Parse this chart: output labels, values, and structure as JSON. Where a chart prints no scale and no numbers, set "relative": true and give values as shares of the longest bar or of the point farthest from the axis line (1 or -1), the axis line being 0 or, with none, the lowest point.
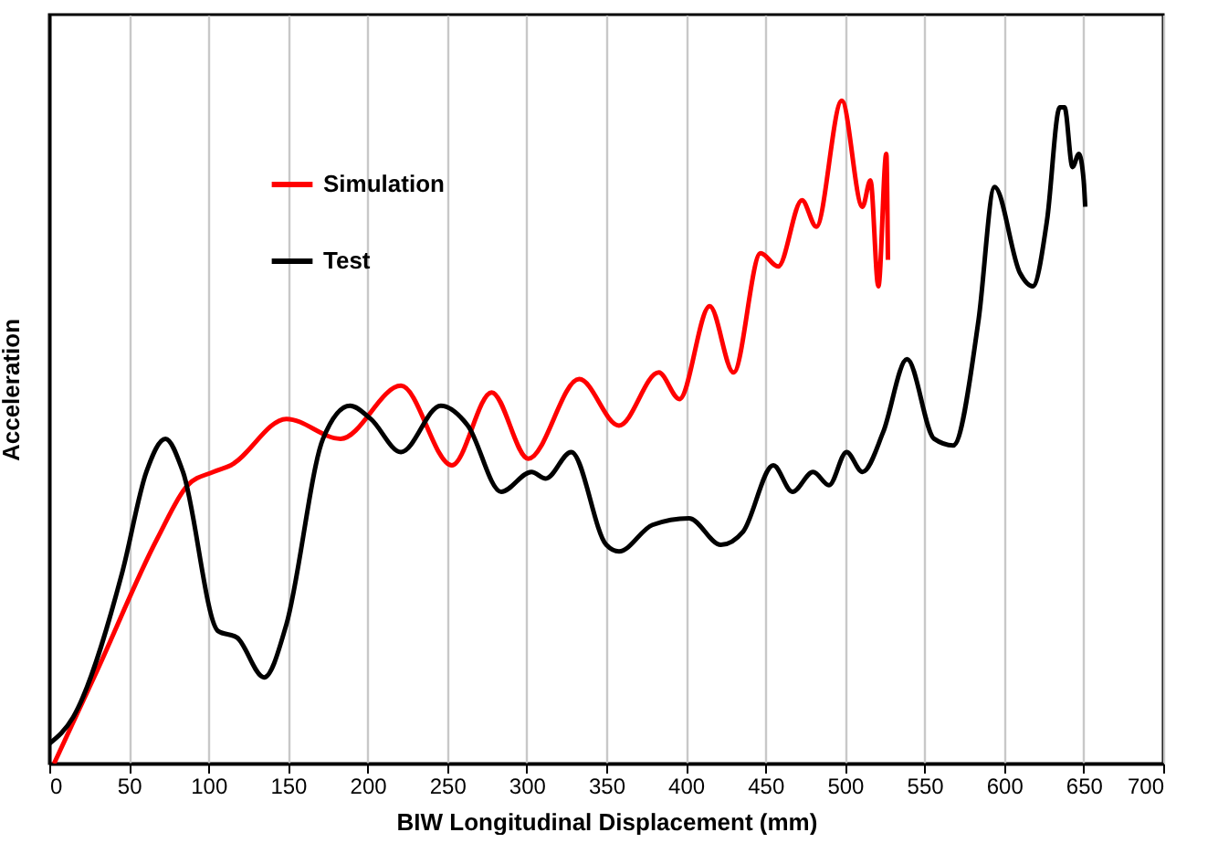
{
  "chart_data": {
    "type": "line",
    "relative": true,
    "xlabel": "BIW Longitudinal  Displacement  (mm)",
    "ylabel": "Acceleration",
    "xlim": [
      0,
      700
    ],
    "xticks": [
      0,
      50,
      100,
      150,
      200,
      250,
      300,
      350,
      400,
      450,
      500,
      550,
      600,
      650,
      700
    ],
    "grid": "x",
    "legend": "top left",
    "line_style": "solid",
    "marker": "none",
    "series": [
      {
        "name": "Simulation",
        "color": "#ff0000",
        "x": [
          3,
          30,
          68,
          87,
          103,
          114,
          149,
          183,
          221,
          253,
          278,
          301,
          333,
          358,
          383,
          396,
          415,
          430,
          447,
          458,
          473,
          482,
          498,
          511,
          516,
          521,
          526,
          527
        ],
        "values": [
          0,
          0.14,
          0.34,
          0.42,
          0.44,
          0.45,
          0.52,
          0.49,
          0.57,
          0.45,
          0.56,
          0.46,
          0.58,
          0.51,
          0.59,
          0.55,
          0.69,
          0.59,
          0.77,
          0.75,
          0.85,
          0.81,
          1.0,
          0.84,
          0.88,
          0.72,
          0.92,
          0.76
        ]
      },
      {
        "name": "Test",
        "color": "#000000",
        "x": [
          0,
          15,
          46,
          61,
          73,
          84,
          106,
          118,
          135,
          149,
          172,
          189,
          202,
          221,
          246,
          263,
          284,
          303,
          312,
          328,
          350,
          358,
          379,
          402,
          422,
          436,
          455,
          467,
          480,
          490,
          501,
          511,
          524,
          539,
          556,
          568,
          584,
          594,
          610,
          618,
          627,
          635,
          638,
          643,
          647,
          650,
          651
        ],
        "values": [
          0.03,
          0.07,
          0.29,
          0.44,
          0.49,
          0.44,
          0.2,
          0.19,
          0.13,
          0.21,
          0.49,
          0.54,
          0.52,
          0.47,
          0.54,
          0.51,
          0.41,
          0.44,
          0.43,
          0.47,
          0.33,
          0.32,
          0.36,
          0.37,
          0.33,
          0.35,
          0.45,
          0.41,
          0.44,
          0.42,
          0.47,
          0.44,
          0.5,
          0.61,
          0.49,
          0.48,
          0.67,
          0.87,
          0.74,
          0.72,
          0.82,
          0.99,
          0.99,
          0.9,
          0.92,
          0.88,
          0.84
        ]
      }
    ]
  }
}
